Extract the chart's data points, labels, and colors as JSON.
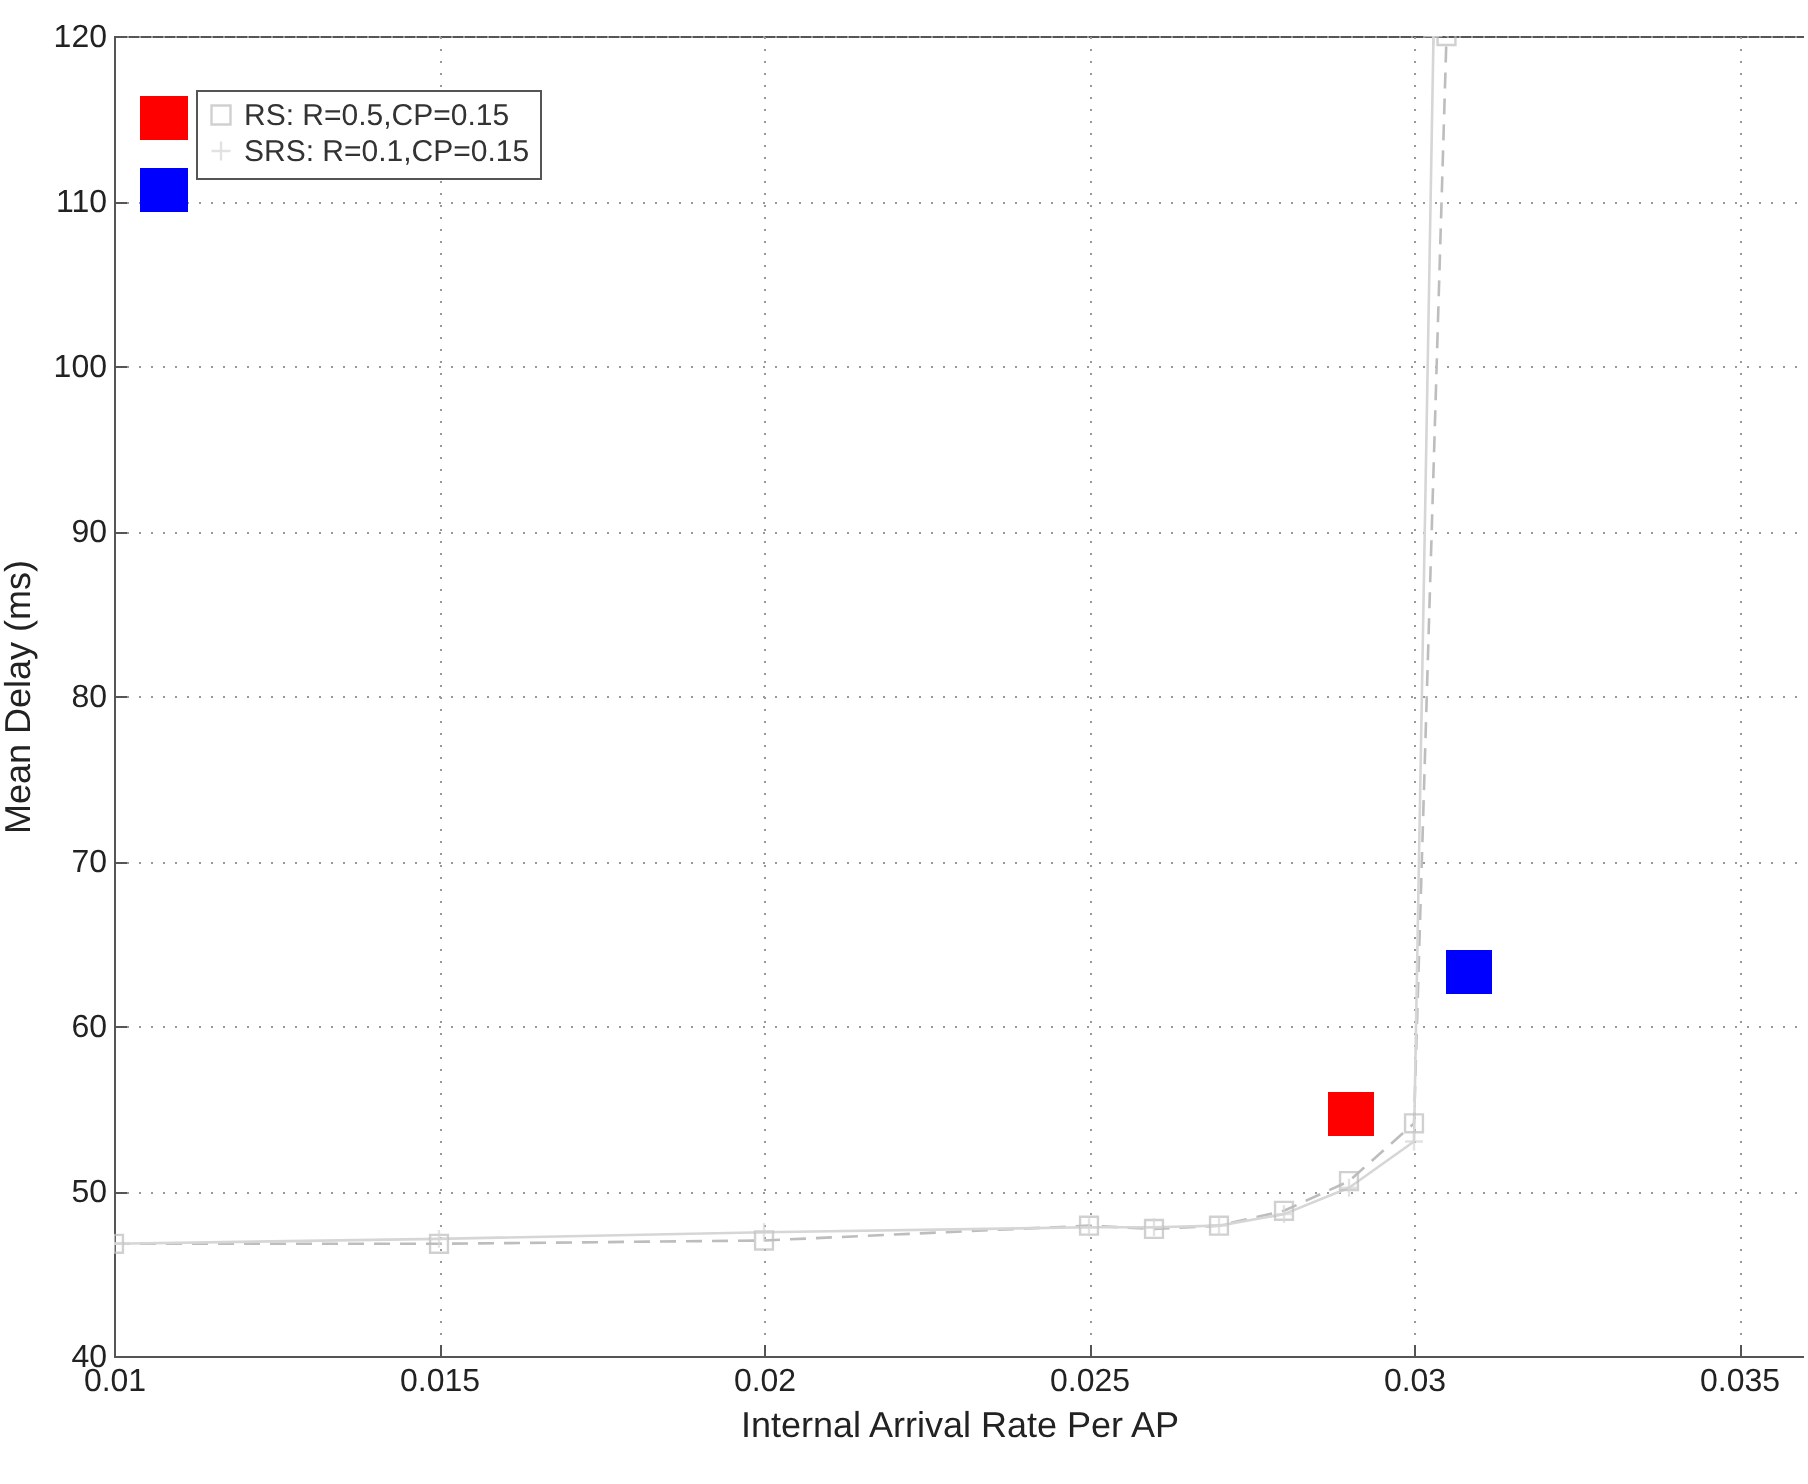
{
  "chart_data": {
    "type": "line",
    "xlabel": "Internal Arrival Rate Per AP",
    "ylabel": "Mean Delay (ms)",
    "xlim": [
      0.01,
      0.036
    ],
    "xticks": [
      0.01,
      0.015,
      0.02,
      0.025,
      0.03,
      0.035
    ],
    "ylim": [
      40,
      120
    ],
    "yticks": [
      40,
      50,
      60,
      70,
      80,
      90,
      100,
      110,
      120
    ],
    "grid": true,
    "legend": "top left",
    "series": [
      {
        "name": "RS: R=0.5,CP=0.15",
        "color": "#bdbdbd",
        "marker": "square",
        "line_style": "dashed",
        "x": [
          0.01,
          0.015,
          0.02,
          0.025,
          0.026,
          0.027,
          0.028,
          0.029,
          0.03,
          0.0305
        ],
        "values": [
          46.8,
          46.8,
          47,
          47.9,
          47.7,
          47.9,
          48.8,
          50.6,
          54.1,
          120
        ]
      },
      {
        "name": "SRS: R=0.1,CP=0.15",
        "color": "#d6d6d6",
        "marker": "cross",
        "line_style": "solid",
        "x": [
          0.01,
          0.015,
          0.02,
          0.025,
          0.026,
          0.027,
          0.028,
          0.029,
          0.03,
          0.0303
        ],
        "values": [
          46.8,
          47.1,
          47.5,
          47.8,
          47.8,
          47.9,
          48.6,
          50.2,
          53,
          120
        ]
      }
    ]
  }
}
